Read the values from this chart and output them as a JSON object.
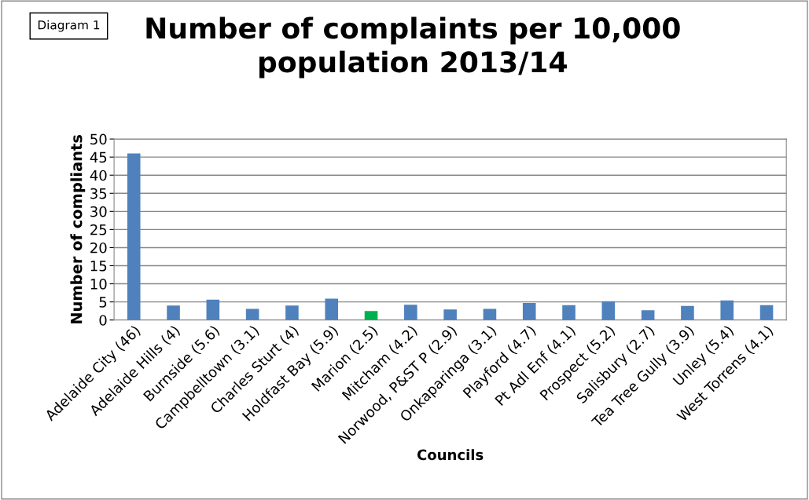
{
  "chart_data": {
    "type": "bar",
    "title": "Number of complaints per 10,000\npopulation 2013/14",
    "xlabel": "Councils",
    "ylabel": "Number of compliants",
    "categories": [
      "Adelaide City (46)",
      "Adelaide Hills (4)",
      "Burnside (5.6)",
      "Campbelltown (3.1)",
      "Charles Sturt (4)",
      "Holdfast Bay (5.9)",
      "Marion (2.5)",
      "Mitcham (4.2)",
      "Norwood, P&ST P (2.9)",
      "Onkaparinga (3.1)",
      "Playford (4.7)",
      "Pt Adl Enf (4.1)",
      "Prospect (5.2)",
      "Salisbury (2.7)",
      "Tea Tree Gully (3.9)",
      "Unley (5.4)",
      "West Torrens (4.1)"
    ],
    "values": [
      46,
      4,
      5.6,
      3.1,
      4,
      5.9,
      2.5,
      4.2,
      2.9,
      3.1,
      4.7,
      4.1,
      5.2,
      2.7,
      3.9,
      5.4,
      4.1
    ],
    "colors": [
      "#4f81bd",
      "#4f81bd",
      "#4f81bd",
      "#4f81bd",
      "#4f81bd",
      "#4f81bd",
      "#00b050",
      "#4f81bd",
      "#4f81bd",
      "#4f81bd",
      "#4f81bd",
      "#4f81bd",
      "#4f81bd",
      "#4f81bd",
      "#4f81bd",
      "#4f81bd",
      "#4f81bd"
    ],
    "ylim": [
      0,
      50
    ],
    "yticks": [
      0,
      5,
      10,
      15,
      20,
      25,
      30,
      35,
      40,
      45,
      50
    ],
    "grid": "y",
    "annotations": [
      "Diagram 1"
    ]
  }
}
